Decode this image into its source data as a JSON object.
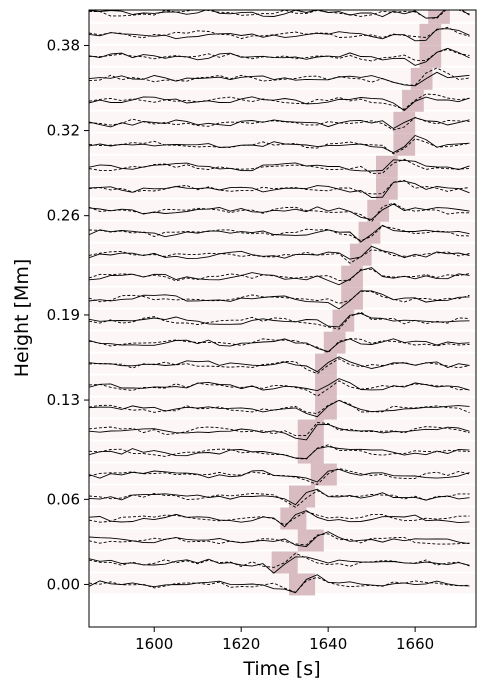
{
  "chart_data": {
    "type": "line",
    "title": "",
    "xlabel": "Time [s]",
    "ylabel": "Height [Mm]",
    "xlim": [
      1585,
      1674
    ],
    "ylim": [
      -0.03,
      0.405
    ],
    "xticks": [
      1600,
      1620,
      1640,
      1660
    ],
    "xtick_labels": [
      "1600",
      "1620",
      "1640",
      "1660"
    ],
    "yticks": [
      0.0,
      0.06,
      0.13,
      0.19,
      0.26,
      0.32,
      0.38
    ],
    "ytick_labels": [
      "0.00",
      "0.06",
      "0.13",
      "0.19",
      "0.26",
      "0.32",
      "0.38"
    ],
    "grid": false,
    "legend": "none",
    "trace_count": 27,
    "trace_spacing_mm": 0.0155,
    "series": [
      {
        "style": "solid",
        "color": "#000000"
      },
      {
        "style": "dashed",
        "color": "#000000"
      }
    ],
    "background_band_color": "#fdf6f6",
    "highlight_color": "#d8bcc2",
    "highlights": [
      {
        "height": 0.0,
        "t_start": 1631,
        "t_end": 1637
      },
      {
        "height": 0.0155,
        "t_start": 1627,
        "t_end": 1633
      },
      {
        "height": 0.031,
        "t_start": 1633,
        "t_end": 1639
      },
      {
        "height": 0.0465,
        "t_start": 1629,
        "t_end": 1635
      },
      {
        "height": 0.062,
        "t_start": 1631,
        "t_end": 1637
      },
      {
        "height": 0.0775,
        "t_start": 1636,
        "t_end": 1642
      },
      {
        "height": 0.093,
        "t_start": 1633,
        "t_end": 1639
      },
      {
        "height": 0.1085,
        "t_start": 1633,
        "t_end": 1639
      },
      {
        "height": 0.124,
        "t_start": 1637,
        "t_end": 1642
      },
      {
        "height": 0.1395,
        "t_start": 1637,
        "t_end": 1642
      },
      {
        "height": 0.155,
        "t_start": 1637,
        "t_end": 1642
      },
      {
        "height": 0.1705,
        "t_start": 1639,
        "t_end": 1644
      },
      {
        "height": 0.186,
        "t_start": 1641,
        "t_end": 1646
      },
      {
        "height": 0.2015,
        "t_start": 1643,
        "t_end": 1648
      },
      {
        "height": 0.217,
        "t_start": 1643,
        "t_end": 1648
      },
      {
        "height": 0.2325,
        "t_start": 1645,
        "t_end": 1650
      },
      {
        "height": 0.248,
        "t_start": 1647,
        "t_end": 1652
      },
      {
        "height": 0.2635,
        "t_start": 1649,
        "t_end": 1654
      },
      {
        "height": 0.279,
        "t_start": 1651,
        "t_end": 1656
      },
      {
        "height": 0.2945,
        "t_start": 1651,
        "t_end": 1656
      },
      {
        "height": 0.31,
        "t_start": 1655,
        "t_end": 1660
      },
      {
        "height": 0.3255,
        "t_start": 1655,
        "t_end": 1660
      },
      {
        "height": 0.341,
        "t_start": 1657,
        "t_end": 1662
      },
      {
        "height": 0.3565,
        "t_start": 1659,
        "t_end": 1664
      },
      {
        "height": 0.372,
        "t_start": 1661,
        "t_end": 1666
      },
      {
        "height": 0.3875,
        "t_start": 1661,
        "t_end": 1666
      },
      {
        "height": 0.403,
        "t_start": 1663,
        "t_end": 1668
      }
    ]
  }
}
